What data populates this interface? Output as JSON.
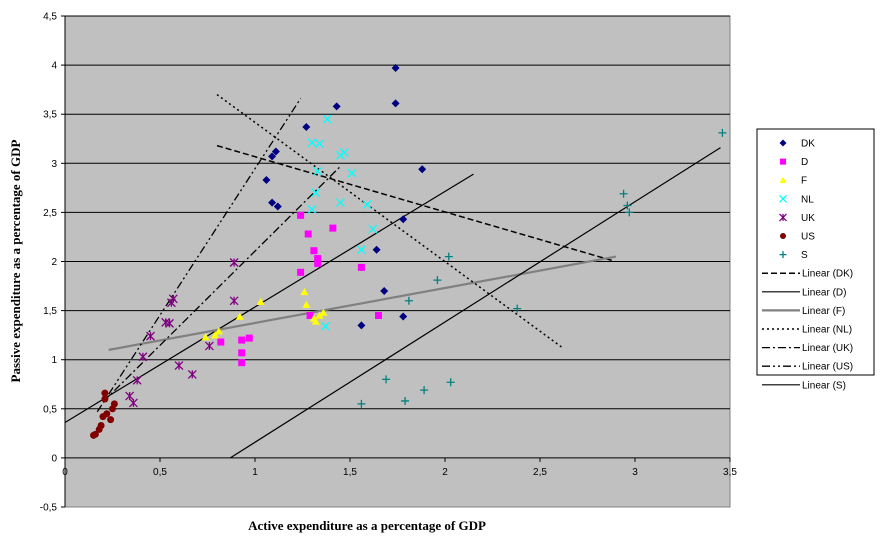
{
  "chart_data": {
    "type": "scatter",
    "title": "",
    "xlabel": "Active expenditure as a percentage of GDP",
    "ylabel": "Passive expenditure as a percentage of GDP",
    "xlim": [
      0,
      3.5
    ],
    "ylim": [
      -0.5,
      4.5
    ],
    "x_ticks": [
      0,
      0.5,
      1,
      1.5,
      2,
      2.5,
      3,
      3.5
    ],
    "x_tick_labels": [
      "0",
      "0,5",
      "1",
      "1,5",
      "2",
      "2,5",
      "3",
      "3,5"
    ],
    "y_ticks": [
      -0.5,
      0,
      0.5,
      1,
      1.5,
      2,
      2.5,
      3,
      3.5,
      4,
      4.5
    ],
    "y_tick_labels": [
      "-0,5",
      "0",
      "0,5",
      "1",
      "1,5",
      "2",
      "2,5",
      "3",
      "3,5",
      "4",
      "4,5"
    ],
    "grid": "horizontal",
    "plot_background": "#c0c0c0",
    "legend_position": "right",
    "series": [
      {
        "name": "DK",
        "marker": "diamond",
        "color": "#000080",
        "points": [
          [
            1.74,
            3.97
          ],
          [
            1.74,
            3.61
          ],
          [
            1.43,
            3.58
          ],
          [
            1.27,
            3.37
          ],
          [
            1.11,
            3.12
          ],
          [
            1.09,
            3.07
          ],
          [
            1.88,
            2.94
          ],
          [
            1.06,
            2.83
          ],
          [
            1.09,
            2.6
          ],
          [
            1.12,
            2.56
          ],
          [
            1.78,
            2.43
          ],
          [
            1.64,
            2.12
          ],
          [
            1.68,
            1.7
          ],
          [
            1.78,
            1.44
          ],
          [
            1.56,
            1.35
          ]
        ]
      },
      {
        "name": "D",
        "marker": "square",
        "color": "#ff00ff",
        "points": [
          [
            1.24,
            2.47
          ],
          [
            1.41,
            2.34
          ],
          [
            1.28,
            2.28
          ],
          [
            1.31,
            2.11
          ],
          [
            1.33,
            2.03
          ],
          [
            1.33,
            1.98
          ],
          [
            1.56,
            1.94
          ],
          [
            1.24,
            1.89
          ],
          [
            1.65,
            1.45
          ],
          [
            1.29,
            1.45
          ],
          [
            0.97,
            1.22
          ],
          [
            0.93,
            1.2
          ],
          [
            0.82,
            1.18
          ],
          [
            0.93,
            1.07
          ],
          [
            0.93,
            0.97
          ]
        ]
      },
      {
        "name": "F",
        "marker": "triangle",
        "color": "#ffff00",
        "points": [
          [
            1.26,
            1.69
          ],
          [
            1.03,
            1.59
          ],
          [
            1.27,
            1.56
          ],
          [
            0.92,
            1.44
          ],
          [
            1.36,
            1.48
          ],
          [
            1.34,
            1.45
          ],
          [
            1.31,
            1.42
          ],
          [
            1.32,
            1.39
          ],
          [
            0.81,
            1.29
          ],
          [
            0.79,
            1.25
          ],
          [
            0.74,
            1.23
          ]
        ]
      },
      {
        "name": "NL",
        "marker": "x",
        "color": "#00ffff",
        "points": [
          [
            1.38,
            3.45
          ],
          [
            1.3,
            3.21
          ],
          [
            1.34,
            3.2
          ],
          [
            1.45,
            3.08
          ],
          [
            1.47,
            3.11
          ],
          [
            1.33,
            2.92
          ],
          [
            1.51,
            2.9
          ],
          [
            1.32,
            2.7
          ],
          [
            1.45,
            2.6
          ],
          [
            1.59,
            2.58
          ],
          [
            1.3,
            2.53
          ],
          [
            1.62,
            2.33
          ],
          [
            1.56,
            2.12
          ],
          [
            1.37,
            1.34
          ]
        ]
      },
      {
        "name": "UK",
        "marker": "star",
        "color": "#800080",
        "points": [
          [
            0.89,
            1.99
          ],
          [
            0.57,
            1.62
          ],
          [
            0.56,
            1.58
          ],
          [
            0.53,
            1.38
          ],
          [
            0.55,
            1.37
          ],
          [
            0.89,
            1.6
          ],
          [
            0.45,
            1.24
          ],
          [
            0.76,
            1.14
          ],
          [
            0.41,
            1.03
          ],
          [
            0.6,
            0.94
          ],
          [
            0.67,
            0.85
          ],
          [
            0.38,
            0.79
          ],
          [
            0.34,
            0.63
          ],
          [
            0.36,
            0.56
          ]
        ]
      },
      {
        "name": "US",
        "marker": "circle",
        "color": "#800000",
        "points": [
          [
            0.21,
            0.66
          ],
          [
            0.21,
            0.6
          ],
          [
            0.26,
            0.55
          ],
          [
            0.25,
            0.5
          ],
          [
            0.22,
            0.45
          ],
          [
            0.2,
            0.42
          ],
          [
            0.24,
            0.39
          ],
          [
            0.19,
            0.33
          ],
          [
            0.18,
            0.29
          ],
          [
            0.16,
            0.24
          ],
          [
            0.15,
            0.23
          ]
        ]
      },
      {
        "name": "S",
        "marker": "plus",
        "color": "#008080",
        "points": [
          [
            3.46,
            3.31
          ],
          [
            2.94,
            2.69
          ],
          [
            2.96,
            2.57
          ],
          [
            2.97,
            2.5
          ],
          [
            2.02,
            2.05
          ],
          [
            1.96,
            1.81
          ],
          [
            1.81,
            1.6
          ],
          [
            2.38,
            1.52
          ],
          [
            1.69,
            0.8
          ],
          [
            1.79,
            0.58
          ],
          [
            2.03,
            0.77
          ],
          [
            1.89,
            0.69
          ],
          [
            1.56,
            0.55
          ]
        ]
      }
    ],
    "trendlines": [
      {
        "name": "Linear (DK)",
        "style": "dashed",
        "color": "#000000",
        "width": 1.5,
        "points": [
          [
            0.8,
            3.18
          ],
          [
            2.88,
            2.01
          ]
        ]
      },
      {
        "name": "Linear (D)",
        "style": "solid",
        "color": "#000000",
        "width": 1.2,
        "points": [
          [
            0,
            0.36
          ],
          [
            2.15,
            2.89
          ]
        ]
      },
      {
        "name": "Linear (F)",
        "style": "solid",
        "color": "#808080",
        "width": 2.2,
        "points": [
          [
            0.23,
            1.1
          ],
          [
            2.9,
            2.05
          ]
        ]
      },
      {
        "name": "Linear (NL)",
        "style": "dotted",
        "color": "#000000",
        "width": 1.5,
        "points": [
          [
            0.8,
            3.7
          ],
          [
            2.62,
            1.12
          ]
        ]
      },
      {
        "name": "Linear (UK)",
        "style": "dashdot",
        "color": "#000000",
        "width": 1.3,
        "points": [
          [
            0.2,
            0.57
          ],
          [
            1.45,
            2.97
          ]
        ]
      },
      {
        "name": "Linear (US)",
        "style": "dashdotdot",
        "color": "#000000",
        "width": 1.3,
        "points": [
          [
            0.17,
            0.47
          ],
          [
            1.24,
            3.66
          ]
        ]
      },
      {
        "name": "Linear (S)",
        "style": "solid",
        "color": "#000000",
        "width": 1.2,
        "points": [
          [
            0.87,
            0
          ],
          [
            3.45,
            3.16
          ]
        ]
      }
    ]
  }
}
